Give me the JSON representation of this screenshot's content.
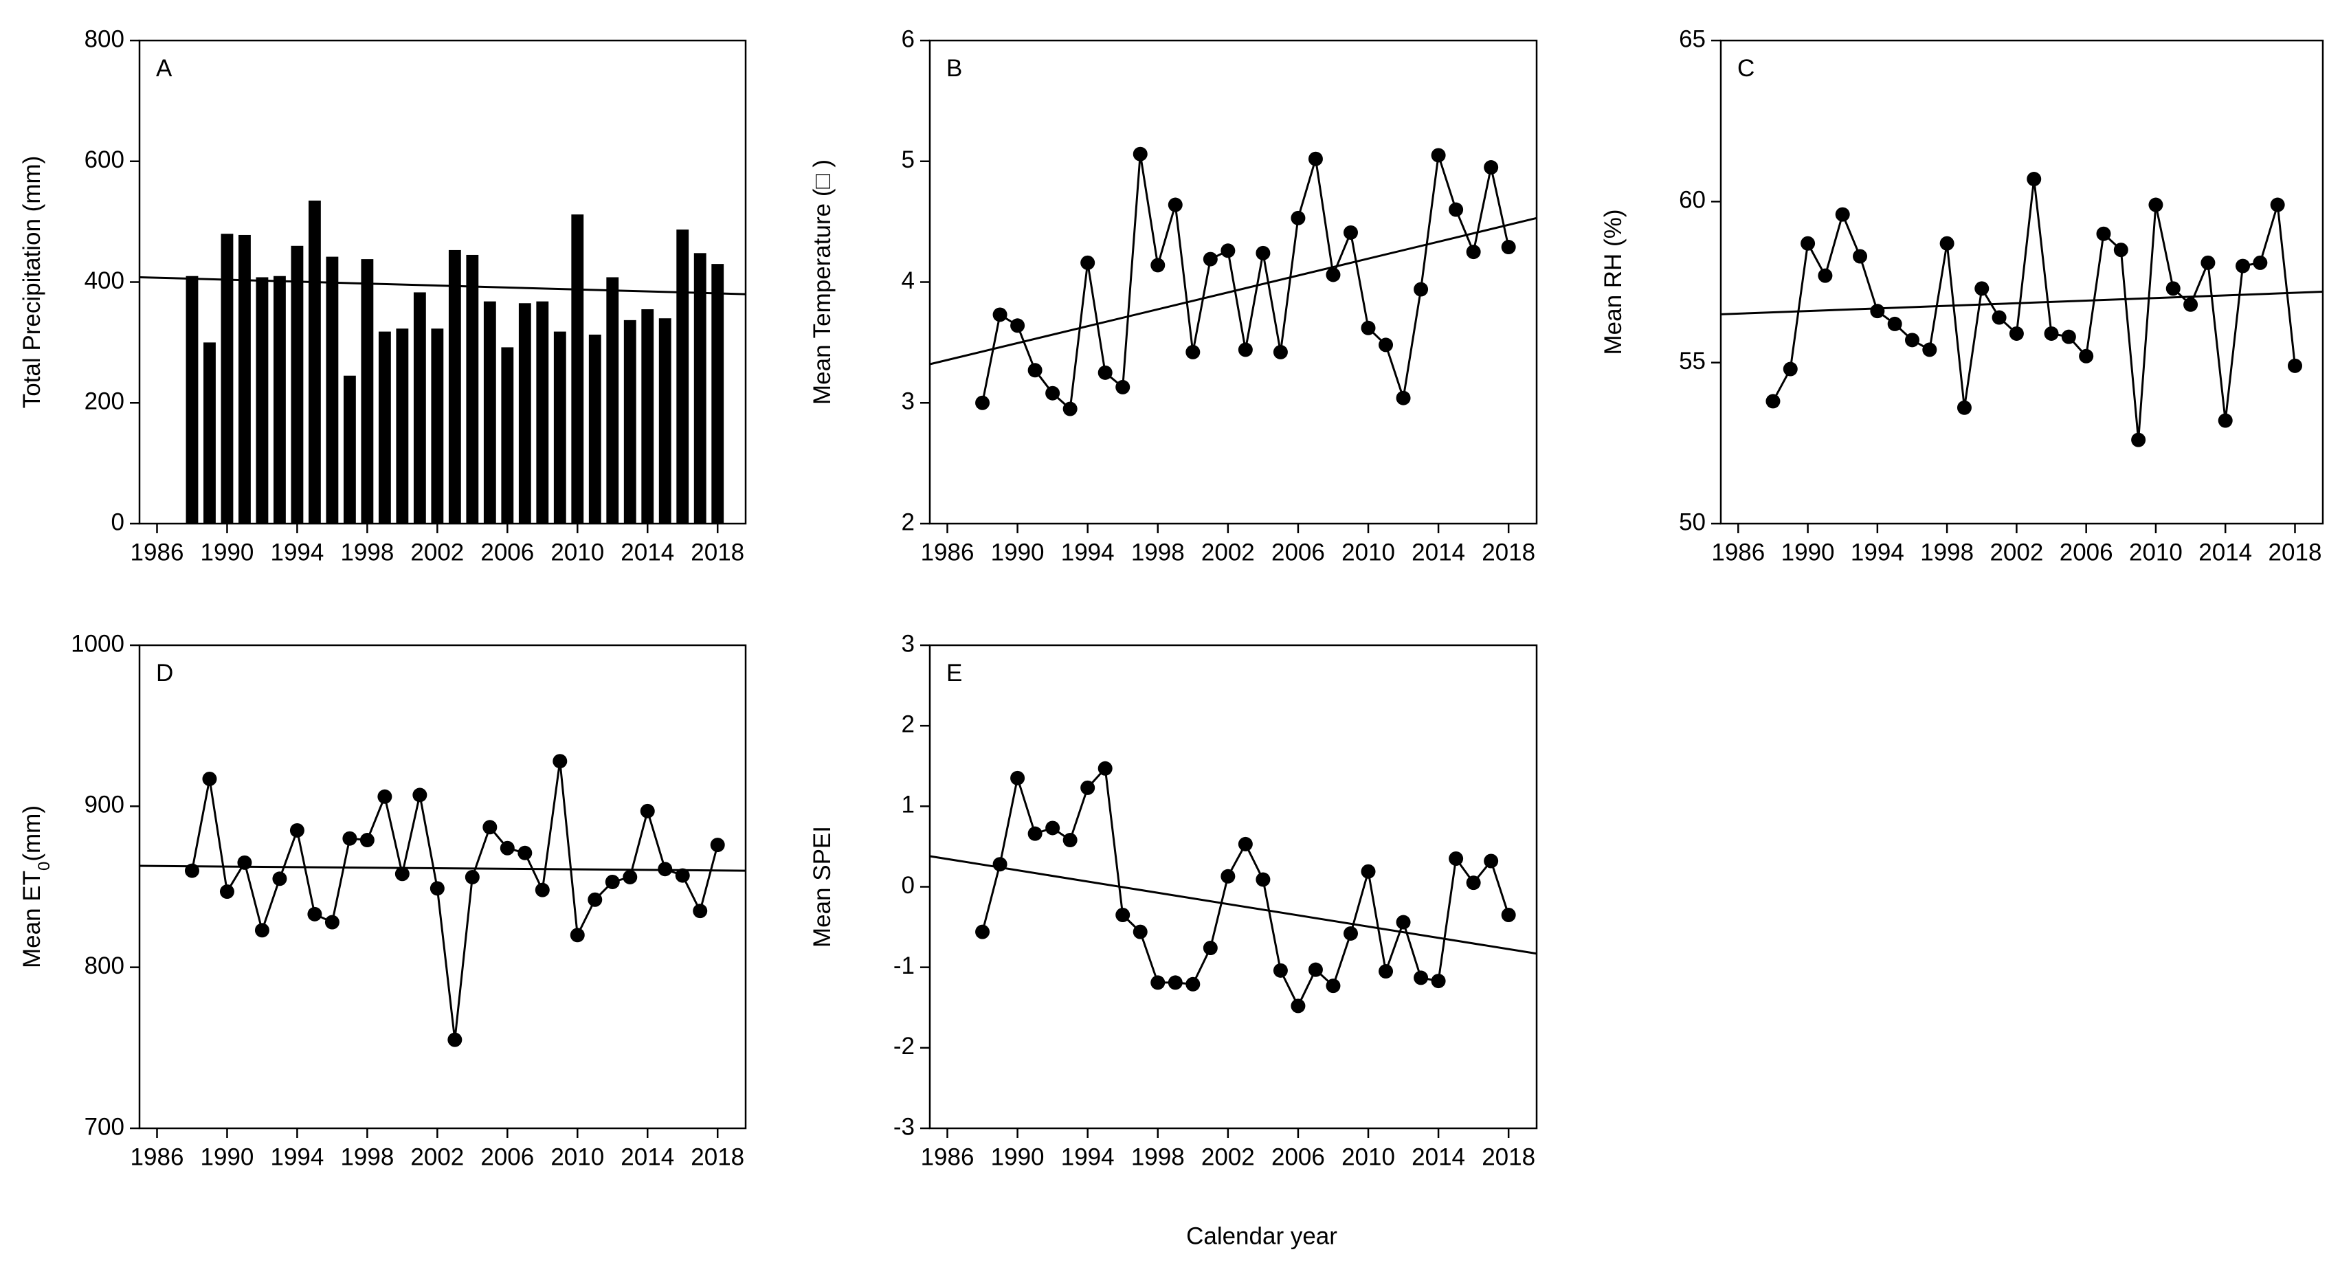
{
  "xlabel": "Calendar year",
  "chart_data": [
    {
      "type": "bar",
      "panel_label": "A",
      "ylabel": [
        "Total Precipitation (mm)"
      ],
      "color": "#000000",
      "x": [
        1988,
        1989,
        1990,
        1991,
        1992,
        1993,
        1994,
        1995,
        1996,
        1997,
        1998,
        1999,
        2000,
        2001,
        2002,
        2003,
        2004,
        2005,
        2006,
        2007,
        2008,
        2009,
        2010,
        2011,
        2012,
        2013,
        2014,
        2015,
        2016,
        2017,
        2018
      ],
      "values": [
        410,
        300,
        480,
        478,
        408,
        410,
        460,
        535,
        442,
        245,
        438,
        318,
        323,
        383,
        323,
        453,
        445,
        368,
        292,
        365,
        368,
        318,
        512,
        313,
        408,
        337,
        355,
        340,
        487,
        448,
        430
      ],
      "xlim": [
        1985,
        2019.6
      ],
      "xticks": [
        1986,
        1990,
        1994,
        1998,
        2002,
        2006,
        2010,
        2014,
        2018
      ],
      "ylim": [
        0,
        800
      ],
      "yticks": [
        0,
        200,
        400,
        600,
        800
      ],
      "trend": {
        "x": [
          1985,
          2019.6
        ],
        "y": [
          408,
          380
        ]
      }
    },
    {
      "type": "line",
      "panel_label": "B",
      "ylabel": [
        "Mean Temperature (□ )"
      ],
      "color": "#000000",
      "x": [
        1988,
        1989,
        1990,
        1991,
        1992,
        1993,
        1994,
        1995,
        1996,
        1997,
        1998,
        1999,
        2000,
        2001,
        2002,
        2003,
        2004,
        2005,
        2006,
        2007,
        2008,
        2009,
        2010,
        2011,
        2012,
        2013,
        2014,
        2015,
        2016,
        2017,
        2018
      ],
      "values": [
        3.0,
        3.73,
        3.64,
        3.27,
        3.08,
        2.95,
        4.16,
        3.25,
        3.13,
        5.06,
        4.14,
        4.64,
        3.42,
        4.19,
        4.26,
        3.44,
        4.24,
        3.42,
        4.53,
        5.02,
        4.06,
        4.41,
        3.62,
        3.48,
        3.04,
        3.94,
        5.05,
        4.6,
        4.25,
        4.95,
        4.29
      ],
      "xlim": [
        1985,
        2019.6
      ],
      "xticks": [
        1986,
        1990,
        1994,
        1998,
        2002,
        2006,
        2010,
        2014,
        2018
      ],
      "ylim": [
        2,
        6
      ],
      "yticks": [
        2,
        3,
        4,
        5,
        6
      ],
      "trend": {
        "x": [
          1985,
          2019.6
        ],
        "y": [
          3.32,
          4.53
        ]
      }
    },
    {
      "type": "line",
      "panel_label": "C",
      "ylabel": [
        "Mean RH (%)"
      ],
      "color": "#000000",
      "x": [
        1988,
        1989,
        1990,
        1991,
        1992,
        1993,
        1994,
        1995,
        1996,
        1997,
        1998,
        1999,
        2000,
        2001,
        2002,
        2003,
        2004,
        2005,
        2006,
        2007,
        2008,
        2009,
        2010,
        2011,
        2012,
        2013,
        2014,
        2015,
        2016,
        2017,
        2018
      ],
      "values": [
        53.8,
        54.8,
        58.7,
        57.7,
        59.6,
        58.3,
        56.6,
        56.2,
        55.7,
        55.4,
        58.7,
        53.6,
        57.3,
        56.4,
        55.9,
        60.7,
        55.9,
        55.8,
        55.2,
        59.0,
        58.5,
        52.6,
        59.9,
        57.3,
        56.8,
        58.1,
        53.2,
        58.0,
        58.1,
        59.9,
        54.9
      ],
      "xlim": [
        1985,
        2019.6
      ],
      "xticks": [
        1986,
        1990,
        1994,
        1998,
        2002,
        2006,
        2010,
        2014,
        2018
      ],
      "ylim": [
        50,
        65
      ],
      "yticks": [
        50,
        55,
        60,
        65
      ],
      "trend": {
        "x": [
          1985,
          2019.6
        ],
        "y": [
          56.5,
          57.2
        ]
      }
    },
    {
      "type": "line",
      "panel_label": "D",
      "ylabel": [
        "Mean ET",
        "0",
        "(mm)"
      ],
      "color": "#000000",
      "x": [
        1988,
        1989,
        1990,
        1991,
        1992,
        1993,
        1994,
        1995,
        1996,
        1997,
        1998,
        1999,
        2000,
        2001,
        2002,
        2003,
        2004,
        2005,
        2006,
        2007,
        2008,
        2009,
        2010,
        2011,
        2012,
        2013,
        2014,
        2015,
        2016,
        2017,
        2018
      ],
      "values": [
        860,
        917,
        847,
        865,
        823,
        855,
        885,
        833,
        828,
        880,
        879,
        906,
        858,
        907,
        849,
        755,
        856,
        887,
        874,
        871,
        848,
        928,
        820,
        842,
        853,
        856,
        897,
        861,
        857,
        835,
        876
      ],
      "xlim": [
        1985,
        2019.6
      ],
      "xticks": [
        1986,
        1990,
        1994,
        1998,
        2002,
        2006,
        2010,
        2014,
        2018
      ],
      "ylim": [
        700,
        1000
      ],
      "yticks": [
        700,
        800,
        900,
        1000
      ],
      "trend": {
        "x": [
          1985,
          2019.6
        ],
        "y": [
          863,
          860
        ]
      }
    },
    {
      "type": "line",
      "panel_label": "E",
      "ylabel": [
        "Mean SPEI"
      ],
      "color": "#000000",
      "x": [
        1988,
        1989,
        1990,
        1991,
        1992,
        1993,
        1994,
        1995,
        1996,
        1997,
        1998,
        1999,
        2000,
        2001,
        2002,
        2003,
        2004,
        2005,
        2006,
        2007,
        2008,
        2009,
        2010,
        2011,
        2012,
        2013,
        2014,
        2015,
        2016,
        2017,
        2018
      ],
      "values": [
        -0.56,
        0.28,
        1.35,
        0.66,
        0.73,
        0.58,
        1.23,
        1.47,
        -0.35,
        -0.56,
        -1.19,
        -1.19,
        -1.21,
        -0.76,
        0.13,
        0.53,
        0.09,
        -1.04,
        -1.48,
        -1.03,
        -1.23,
        -0.58,
        0.19,
        -1.05,
        -0.44,
        -1.13,
        -1.17,
        0.35,
        0.05,
        0.32,
        -0.35
      ],
      "xlim": [
        1985,
        2019.6
      ],
      "xticks": [
        1986,
        1990,
        1994,
        1998,
        2002,
        2006,
        2010,
        2014,
        2018
      ],
      "ylim": [
        -3,
        3
      ],
      "yticks": [
        -3,
        -2,
        -1,
        0,
        1,
        2,
        3
      ],
      "trend": {
        "x": [
          1985,
          2019.6
        ],
        "y": [
          0.38,
          -0.83
        ]
      }
    }
  ]
}
